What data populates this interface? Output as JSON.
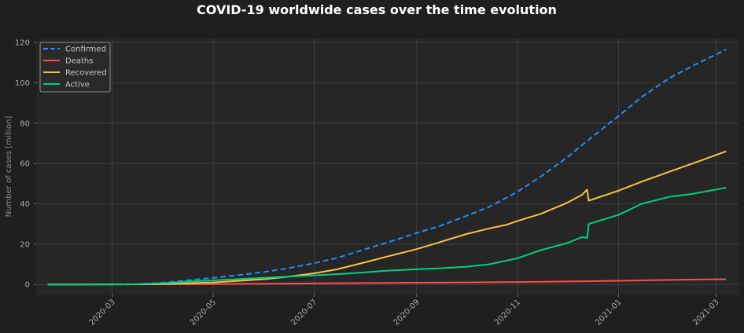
{
  "chart_data": {
    "type": "line",
    "title": "COVID-19 worldwide cases over the time evolution",
    "ylabel": "Number of cases [million]",
    "xlabel": "",
    "x_range": [
      "2020-01-15",
      "2021-03-15"
    ],
    "ylim": [
      -5,
      122
    ],
    "x_ticks": [
      "2020-03",
      "2020-05",
      "2020-07",
      "2020-09",
      "2020-11",
      "2021-01",
      "2021-03"
    ],
    "y_ticks": [
      0,
      20,
      40,
      60,
      80,
      100,
      120
    ],
    "grid": true,
    "legend_position": "top-left",
    "colors": {
      "background": "#1f1f1f",
      "plot_background": "#262626",
      "grid": "#444444"
    },
    "series": [
      {
        "name": "Confirmed",
        "color": "#1f8fff",
        "dash": true,
        "points": [
          [
            "2020-01-22",
            0.0
          ],
          [
            "2020-02-15",
            0.07
          ],
          [
            "2020-03-01",
            0.09
          ],
          [
            "2020-03-15",
            0.17
          ],
          [
            "2020-04-01",
            0.9
          ],
          [
            "2020-04-15",
            2.0
          ],
          [
            "2020-05-01",
            3.3
          ],
          [
            "2020-05-15",
            4.5
          ],
          [
            "2020-06-01",
            6.2
          ],
          [
            "2020-06-15",
            8.0
          ],
          [
            "2020-07-01",
            10.5
          ],
          [
            "2020-07-15",
            13.2
          ],
          [
            "2020-08-01",
            17.5
          ],
          [
            "2020-08-15",
            21.0
          ],
          [
            "2020-09-01",
            25.5
          ],
          [
            "2020-09-15",
            29.0
          ],
          [
            "2020-10-01",
            34.0
          ],
          [
            "2020-10-15",
            38.5
          ],
          [
            "2020-11-01",
            46.0
          ],
          [
            "2020-11-15",
            53.5
          ],
          [
            "2020-12-01",
            63.0
          ],
          [
            "2020-12-15",
            72.5
          ],
          [
            "2021-01-01",
            83.5
          ],
          [
            "2021-01-15",
            93.0
          ],
          [
            "2021-02-01",
            102.5
          ],
          [
            "2021-02-15",
            108.5
          ],
          [
            "2021-03-07",
            116.5
          ]
        ]
      },
      {
        "name": "Deaths",
        "color": "#ff4d4d",
        "dash": false,
        "points": [
          [
            "2020-01-22",
            0.0
          ],
          [
            "2020-03-15",
            0.01
          ],
          [
            "2020-04-15",
            0.13
          ],
          [
            "2020-06-01",
            0.37
          ],
          [
            "2020-07-01",
            0.51
          ],
          [
            "2020-08-01",
            0.68
          ],
          [
            "2020-09-01",
            0.85
          ],
          [
            "2020-10-01",
            1.0
          ],
          [
            "2020-11-01",
            1.2
          ],
          [
            "2020-12-01",
            1.47
          ],
          [
            "2021-01-01",
            1.8
          ],
          [
            "2021-02-01",
            2.25
          ],
          [
            "2021-03-07",
            2.6
          ]
        ]
      },
      {
        "name": "Recovered",
        "color": "#ffc040",
        "dash": false,
        "points": [
          [
            "2020-01-22",
            0.0
          ],
          [
            "2020-03-01",
            0.04
          ],
          [
            "2020-03-15",
            0.07
          ],
          [
            "2020-04-01",
            0.18
          ],
          [
            "2020-04-15",
            0.5
          ],
          [
            "2020-05-01",
            1.0
          ],
          [
            "2020-05-15",
            1.7
          ],
          [
            "2020-06-01",
            2.6
          ],
          [
            "2020-06-15",
            3.8
          ],
          [
            "2020-07-01",
            5.5
          ],
          [
            "2020-07-15",
            7.5
          ],
          [
            "2020-08-01",
            11.0
          ],
          [
            "2020-08-15",
            14.0
          ],
          [
            "2020-09-01",
            17.5
          ],
          [
            "2020-09-15",
            21.0
          ],
          [
            "2020-10-01",
            25.0
          ],
          [
            "2020-10-15",
            27.8
          ],
          [
            "2020-10-25",
            29.5
          ],
          [
            "2020-11-01",
            31.5
          ],
          [
            "2020-11-15",
            35.0
          ],
          [
            "2020-12-01",
            40.5
          ],
          [
            "2020-12-10",
            44.5
          ],
          [
            "2020-12-13",
            47.0
          ],
          [
            "2020-12-14",
            41.5
          ],
          [
            "2021-01-01",
            46.5
          ],
          [
            "2021-01-15",
            51.0
          ],
          [
            "2021-02-01",
            56.0
          ],
          [
            "2021-02-15",
            60.0
          ],
          [
            "2021-03-07",
            66.0
          ]
        ]
      },
      {
        "name": "Active",
        "color": "#00d080",
        "dash": false,
        "points": [
          [
            "2020-01-22",
            0.0
          ],
          [
            "2020-03-01",
            0.04
          ],
          [
            "2020-03-15",
            0.1
          ],
          [
            "2020-04-01",
            0.6
          ],
          [
            "2020-04-15",
            1.3
          ],
          [
            "2020-05-01",
            2.0
          ],
          [
            "2020-05-15",
            2.6
          ],
          [
            "2020-06-01",
            3.3
          ],
          [
            "2020-06-15",
            3.9
          ],
          [
            "2020-07-01",
            4.5
          ],
          [
            "2020-07-15",
            5.1
          ],
          [
            "2020-08-01",
            6.0
          ],
          [
            "2020-08-15",
            6.9
          ],
          [
            "2020-09-01",
            7.5
          ],
          [
            "2020-09-15",
            8.0
          ],
          [
            "2020-10-01",
            8.8
          ],
          [
            "2020-10-15",
            10.0
          ],
          [
            "2020-11-01",
            13.0
          ],
          [
            "2020-11-15",
            17.0
          ],
          [
            "2020-12-01",
            20.5
          ],
          [
            "2020-12-10",
            23.5
          ],
          [
            "2020-12-13",
            23.0
          ],
          [
            "2020-12-14",
            30.0
          ],
          [
            "2021-01-01",
            34.5
          ],
          [
            "2021-01-15",
            40.0
          ],
          [
            "2021-02-01",
            43.5
          ],
          [
            "2021-02-15",
            45.0
          ],
          [
            "2021-03-07",
            48.0
          ]
        ]
      }
    ]
  }
}
